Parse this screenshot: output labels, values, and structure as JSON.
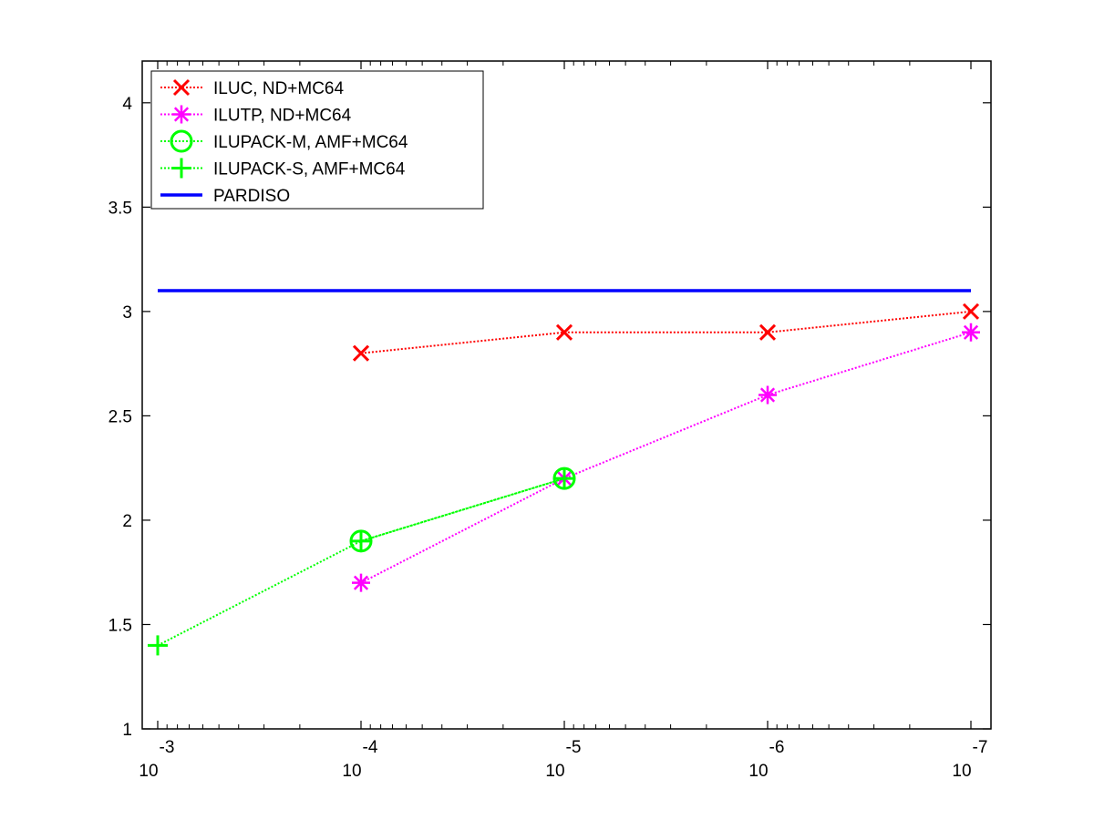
{
  "chart_data": {
    "type": "line",
    "x_scale": "log",
    "x_reversed": true,
    "x_ticks": [
      {
        "value": 0.001,
        "base": "10",
        "exp": "-3"
      },
      {
        "value": 0.0001,
        "base": "10",
        "exp": "-4"
      },
      {
        "value": 1e-05,
        "base": "10",
        "exp": "-5"
      },
      {
        "value": 1e-06,
        "base": "10",
        "exp": "-6"
      },
      {
        "value": 1e-07,
        "base": "10",
        "exp": "-7"
      }
    ],
    "xlim": [
      0.001,
      1e-07
    ],
    "ylim": [
      1,
      4.2
    ],
    "y_ticks": [
      "1",
      "1.5",
      "2",
      "2.5",
      "3",
      "3.5",
      "4"
    ],
    "grid": false,
    "legend_position": "top-left",
    "series": [
      {
        "name": "ILUC,  ND+MC64",
        "marker": "x",
        "line_style": "dotted",
        "color": "#ff0000",
        "x": [
          0.0001,
          1e-05,
          1e-06,
          1e-07
        ],
        "y": [
          2.8,
          2.9,
          2.9,
          3.0
        ]
      },
      {
        "name": "ILUTP,  ND+MC64",
        "marker": "asterisk",
        "line_style": "dotted",
        "color": "#ff00ff",
        "x": [
          0.0001,
          1e-05,
          1e-06,
          1e-07
        ],
        "y": [
          1.7,
          2.2,
          2.6,
          2.9
        ]
      },
      {
        "name": "ILUPACK-M, AMF+MC64",
        "marker": "circle",
        "line_style": "dotted",
        "color": "#00ff00",
        "x": [
          0.0001,
          1e-05
        ],
        "y": [
          1.9,
          2.2
        ]
      },
      {
        "name": "ILUPACK-S, AMF+MC64",
        "marker": "plus",
        "line_style": "dotted",
        "color": "#00ff00",
        "x": [
          0.001,
          0.0001,
          1e-05
        ],
        "y": [
          1.4,
          1.9,
          2.2
        ]
      },
      {
        "name": "PARDISO",
        "marker": "none",
        "line_style": "solid",
        "color": "#0000ff",
        "x": [
          0.001,
          1e-07
        ],
        "y": [
          3.1,
          3.1
        ]
      }
    ]
  }
}
